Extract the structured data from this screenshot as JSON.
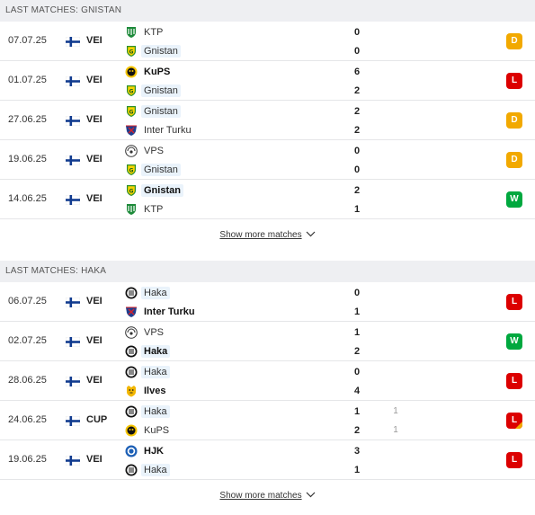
{
  "sections": [
    {
      "title": "LAST MATCHES: GNISTAN",
      "show_more": "Show more matches",
      "matches": [
        {
          "date": "07.07.25",
          "comp": "VEI",
          "home": {
            "name": "KTP",
            "logo": "ktp",
            "bold": false
          },
          "away": {
            "name": "Gnistan",
            "logo": "gnistan",
            "bold": false
          },
          "home_score": "0",
          "away_score": "0",
          "result": "D",
          "highlight": "away"
        },
        {
          "date": "01.07.25",
          "comp": "VEI",
          "home": {
            "name": "KuPS",
            "logo": "kups",
            "bold": true
          },
          "away": {
            "name": "Gnistan",
            "logo": "gnistan",
            "bold": false
          },
          "home_score": "6",
          "away_score": "2",
          "result": "L",
          "highlight": "away"
        },
        {
          "date": "27.06.25",
          "comp": "VEI",
          "home": {
            "name": "Gnistan",
            "logo": "gnistan",
            "bold": false
          },
          "away": {
            "name": "Inter Turku",
            "logo": "inter",
            "bold": false
          },
          "home_score": "2",
          "away_score": "2",
          "result": "D",
          "highlight": "home"
        },
        {
          "date": "19.06.25",
          "comp": "VEI",
          "home": {
            "name": "VPS",
            "logo": "vps",
            "bold": false
          },
          "away": {
            "name": "Gnistan",
            "logo": "gnistan",
            "bold": false
          },
          "home_score": "0",
          "away_score": "0",
          "result": "D",
          "highlight": "away"
        },
        {
          "date": "14.06.25",
          "comp": "VEI",
          "home": {
            "name": "Gnistan",
            "logo": "gnistan",
            "bold": true
          },
          "away": {
            "name": "KTP",
            "logo": "ktp",
            "bold": false
          },
          "home_score": "2",
          "away_score": "1",
          "result": "W",
          "highlight": "home"
        }
      ]
    },
    {
      "title": "LAST MATCHES: HAKA",
      "show_more": "Show more matches",
      "matches": [
        {
          "date": "06.07.25",
          "comp": "VEI",
          "home": {
            "name": "Haka",
            "logo": "haka",
            "bold": false
          },
          "away": {
            "name": "Inter Turku",
            "logo": "inter",
            "bold": true
          },
          "home_score": "0",
          "away_score": "1",
          "result": "L",
          "highlight": "home"
        },
        {
          "date": "02.07.25",
          "comp": "VEI",
          "home": {
            "name": "VPS",
            "logo": "vps",
            "bold": false
          },
          "away": {
            "name": "Haka",
            "logo": "haka",
            "bold": true
          },
          "home_score": "1",
          "away_score": "2",
          "result": "W",
          "highlight": "away"
        },
        {
          "date": "28.06.25",
          "comp": "VEI",
          "home": {
            "name": "Haka",
            "logo": "haka",
            "bold": false
          },
          "away": {
            "name": "Ilves",
            "logo": "ilves",
            "bold": true
          },
          "home_score": "0",
          "away_score": "4",
          "result": "L",
          "highlight": "home"
        },
        {
          "date": "24.06.25",
          "comp": "CUP",
          "home": {
            "name": "Haka",
            "logo": "haka",
            "bold": false
          },
          "away": {
            "name": "KuPS",
            "logo": "kups",
            "bold": false
          },
          "home_score": "1",
          "away_score": "2",
          "home_sub": "1",
          "away_sub": "1",
          "result": "L",
          "half": true,
          "highlight": "home"
        },
        {
          "date": "19.06.25",
          "comp": "VEI",
          "home": {
            "name": "HJK",
            "logo": "hjk",
            "bold": true
          },
          "away": {
            "name": "Haka",
            "logo": "haka",
            "bold": false
          },
          "home_score": "3",
          "away_score": "1",
          "result": "L",
          "highlight": "away"
        }
      ]
    }
  ],
  "colors": {
    "draw": "#f2a900",
    "loss": "#dc0000",
    "win": "#00a83f",
    "highlight_bg": "#eaf3fb"
  }
}
